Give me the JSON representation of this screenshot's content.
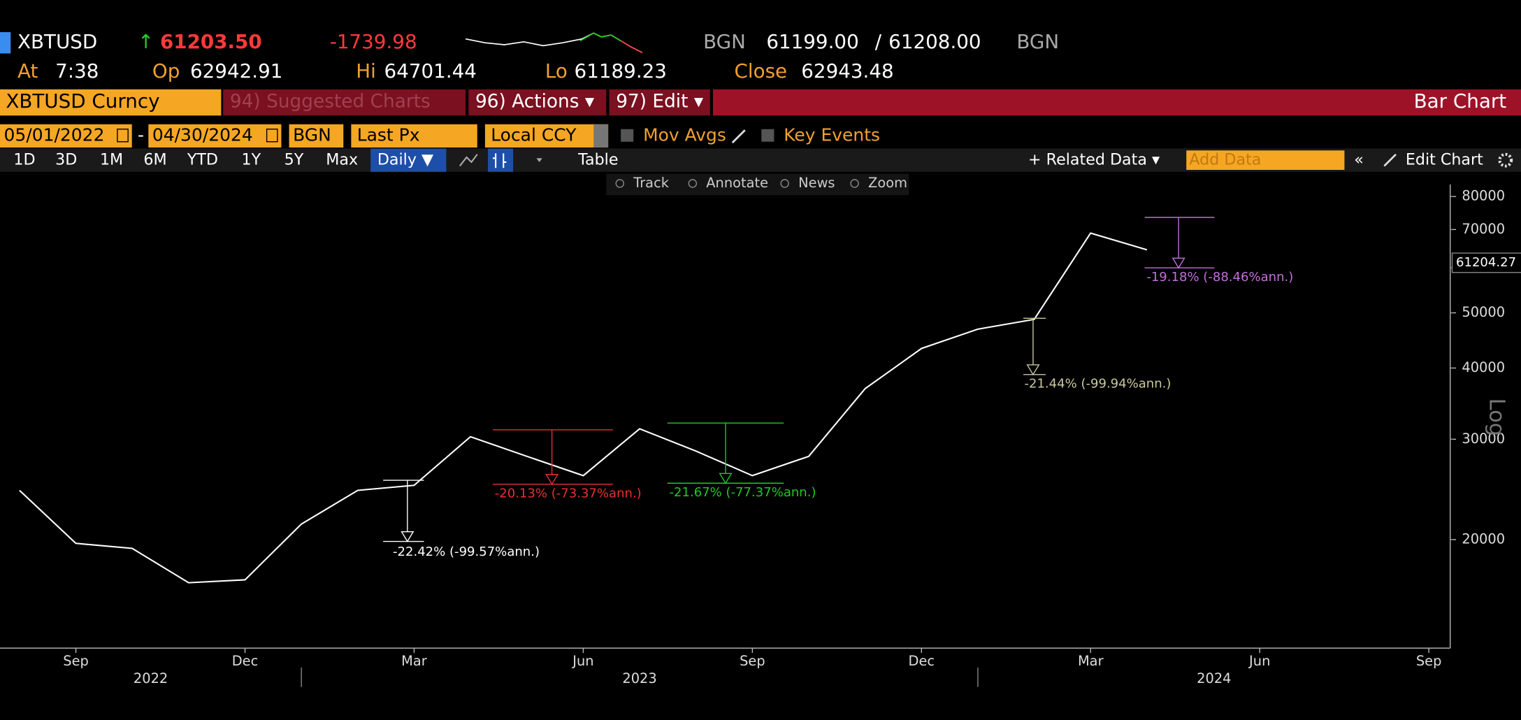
{
  "header": {
    "ticker": "XBTUSD",
    "arrow": "↑",
    "last": "61203.50",
    "change": "-1739.98",
    "source": "BGN",
    "bid": "61199.00",
    "slash": "/",
    "ask": "61208.00",
    "source2": "BGN",
    "time": {
      "label": "At",
      "value": "7:38"
    },
    "open": {
      "label": "Op",
      "value": "62942.91"
    },
    "high": {
      "label": "Hi",
      "value": "64701.44"
    },
    "low": {
      "label": "Lo",
      "value": "61189.23"
    },
    "close": {
      "label": "Close",
      "value": "62943.48"
    }
  },
  "toolbar": {
    "security": "XBTUSD Curncy",
    "suggested": "94) Suggested Charts",
    "actions": "96) Actions ▾",
    "edit": "97) Edit ▾",
    "chart_kind": "Bar Chart",
    "start_date": "05/01/2022",
    "dash": "-",
    "end_date": "04/30/2024",
    "source": "BGN",
    "field": "Last Px",
    "currency": "Local CCY",
    "mov_avgs": "Mov Avgs",
    "key_events": "Key Events",
    "periods": [
      "1D",
      "3D",
      "1M",
      "6M",
      "YTD",
      "1Y",
      "5Y",
      "Max"
    ],
    "frequency": "Daily ▼",
    "table": "Table",
    "related": "+ Related Data ▾",
    "add_data": "Add Data",
    "edit_chart": "Edit Chart",
    "tools": [
      "Track",
      "Annotate",
      "News",
      "Zoom"
    ]
  },
  "chart_data": {
    "type": "line",
    "y_label": "Log",
    "log_scale": true,
    "grid": false,
    "x": [
      "2022-08",
      "2022-09",
      "2022-10",
      "2022-11",
      "2022-12",
      "2023-01",
      "2023-02",
      "2023-03",
      "2023-04",
      "2023-05",
      "2023-06",
      "2023-07",
      "2023-08",
      "2023-09",
      "2023-10",
      "2023-11",
      "2023-12",
      "2024-01",
      "2024-02",
      "2024-03",
      "2024-04"
    ],
    "series": [
      {
        "name": "XBTUSD",
        "color": "#ffffff",
        "values": [
          24400,
          19700,
          19300,
          16800,
          17000,
          21300,
          24400,
          24900,
          30300,
          28000,
          25900,
          31300,
          28600,
          25900,
          28000,
          36800,
          43300,
          46800,
          48700,
          69000,
          64500
        ]
      }
    ],
    "xlim": [
      "2022-07",
      "2024-09"
    ],
    "xticks": [
      {
        "value": "2022-09",
        "label": "Sep"
      },
      {
        "value": "2022-12",
        "label": "Dec"
      },
      {
        "value": "2023-03",
        "label": "Mar"
      },
      {
        "value": "2023-06",
        "label": "Jun"
      },
      {
        "value": "2023-09",
        "label": "Sep"
      },
      {
        "value": "2023-12",
        "label": "Dec"
      },
      {
        "value": "2024-03",
        "label": "Mar"
      },
      {
        "value": "2024-06",
        "label": "Jun"
      },
      {
        "value": "2024-09",
        "label": "Sep"
      }
    ],
    "years": [
      "2022",
      "2023",
      "2024"
    ],
    "ylim": [
      12900,
      84000
    ],
    "yticks": [
      20000,
      30000,
      40000,
      50000,
      70000,
      80000
    ],
    "last_price": 61204.27,
    "annotations": [
      {
        "text": "-22.42% (-99.57%ann.)",
        "color": "#ffffff"
      },
      {
        "text": "-20.13% (-73.37%ann.)",
        "color": "#e83030"
      },
      {
        "text": "-21.67% (-77.37%ann.)",
        "color": "#22c822"
      },
      {
        "text": "-21.44% (-99.94%ann.)",
        "color": "#c8c8a0"
      },
      {
        "text": "-19.18% (-88.46%ann.)",
        "color": "#c070d8"
      }
    ]
  }
}
